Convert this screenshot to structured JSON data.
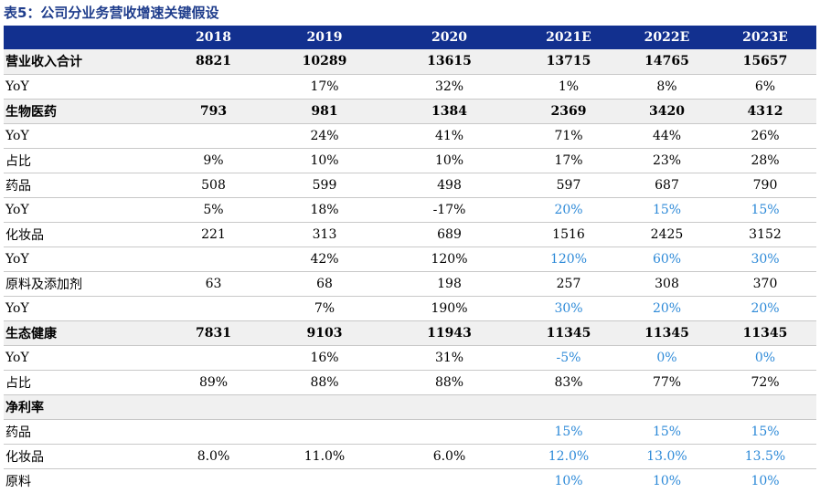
{
  "title": "表5：公司分业务营收增速关键假设",
  "header": [
    "",
    "2018",
    "2019",
    "2020",
    "2021E",
    "2022E",
    "2023E"
  ],
  "rows": [
    {
      "label": "营业收入合计",
      "bold": true,
      "cells": [
        "8821",
        "10289",
        "13615",
        "13715",
        "14765",
        "15657"
      ],
      "blue": [
        false,
        false,
        false,
        false,
        false,
        false
      ]
    },
    {
      "label": "YoY",
      "bold": false,
      "cells": [
        "",
        "17%",
        "32%",
        "1%",
        "8%",
        "6%"
      ],
      "blue": [
        false,
        false,
        false,
        false,
        false,
        false
      ]
    },
    {
      "label": "生物医药",
      "bold": true,
      "cells": [
        "793",
        "981",
        "1384",
        "2369",
        "3420",
        "4312"
      ],
      "blue": [
        false,
        false,
        false,
        false,
        false,
        false
      ]
    },
    {
      "label": "YoY",
      "bold": false,
      "cells": [
        "",
        "24%",
        "41%",
        "71%",
        "44%",
        "26%"
      ],
      "blue": [
        false,
        false,
        false,
        false,
        false,
        false
      ]
    },
    {
      "label": "占比",
      "bold": false,
      "cells": [
        "9%",
        "10%",
        "10%",
        "17%",
        "23%",
        "28%"
      ],
      "blue": [
        false,
        false,
        false,
        false,
        false,
        false
      ]
    },
    {
      "label": "药品",
      "bold": false,
      "cells": [
        "508",
        "599",
        "498",
        "597",
        "687",
        "790"
      ],
      "blue": [
        false,
        false,
        false,
        false,
        false,
        false
      ]
    },
    {
      "label": "YoY",
      "bold": false,
      "cells": [
        "5%",
        "18%",
        "-17%",
        "20%",
        "15%",
        "15%"
      ],
      "blue": [
        false,
        false,
        false,
        true,
        true,
        true
      ]
    },
    {
      "label": "化妆品",
      "bold": false,
      "cells": [
        "221",
        "313",
        "689",
        "1516",
        "2425",
        "3152"
      ],
      "blue": [
        false,
        false,
        false,
        false,
        false,
        false
      ]
    },
    {
      "label": "YoY",
      "bold": false,
      "cells": [
        "",
        "42%",
        "120%",
        "120%",
        "60%",
        "30%"
      ],
      "blue": [
        false,
        false,
        false,
        true,
        true,
        true
      ]
    },
    {
      "label": "原料及添加剂",
      "bold": false,
      "cells": [
        "63",
        "68",
        "198",
        "257",
        "308",
        "370"
      ],
      "blue": [
        false,
        false,
        false,
        false,
        false,
        false
      ]
    },
    {
      "label": "YoY",
      "bold": false,
      "cells": [
        "",
        "7%",
        "190%",
        "30%",
        "20%",
        "20%"
      ],
      "blue": [
        false,
        false,
        false,
        true,
        true,
        true
      ]
    },
    {
      "label": "生态健康",
      "bold": true,
      "cells": [
        "7831",
        "9103",
        "11943",
        "11345",
        "11345",
        "11345"
      ],
      "blue": [
        false,
        false,
        false,
        false,
        false,
        false
      ]
    },
    {
      "label": "YoY",
      "bold": false,
      "cells": [
        "",
        "16%",
        "31%",
        "-5%",
        "0%",
        "0%"
      ],
      "blue": [
        false,
        false,
        false,
        true,
        true,
        true
      ]
    },
    {
      "label": "占比",
      "bold": false,
      "cells": [
        "89%",
        "88%",
        "88%",
        "83%",
        "77%",
        "72%"
      ],
      "blue": [
        false,
        false,
        false,
        false,
        false,
        false
      ]
    },
    {
      "label": "净利率",
      "bold": true,
      "cells": [
        "",
        "",
        "",
        "",
        "",
        ""
      ],
      "blue": [
        false,
        false,
        false,
        false,
        false,
        false
      ]
    },
    {
      "label": "药品",
      "bold": false,
      "cells": [
        "",
        "",
        "",
        "15%",
        "15%",
        "15%"
      ],
      "blue": [
        false,
        false,
        false,
        true,
        true,
        true
      ]
    },
    {
      "label": "化妆品",
      "bold": false,
      "cells": [
        "8.0%",
        "11.0%",
        "6.0%",
        "12.0%",
        "13.0%",
        "13.5%"
      ],
      "blue": [
        false,
        false,
        false,
        true,
        true,
        true
      ]
    },
    {
      "label": "原料",
      "bold": false,
      "cells": [
        "",
        "",
        "",
        "10%",
        "10%",
        "10%"
      ],
      "blue": [
        false,
        false,
        false,
        true,
        true,
        true
      ]
    }
  ],
  "colors": {
    "header_bg": "#12308f",
    "title": "#1f3d8c",
    "forecast_blue": "#2e8ad8",
    "bold_row_bg": "#f0f0f0"
  }
}
